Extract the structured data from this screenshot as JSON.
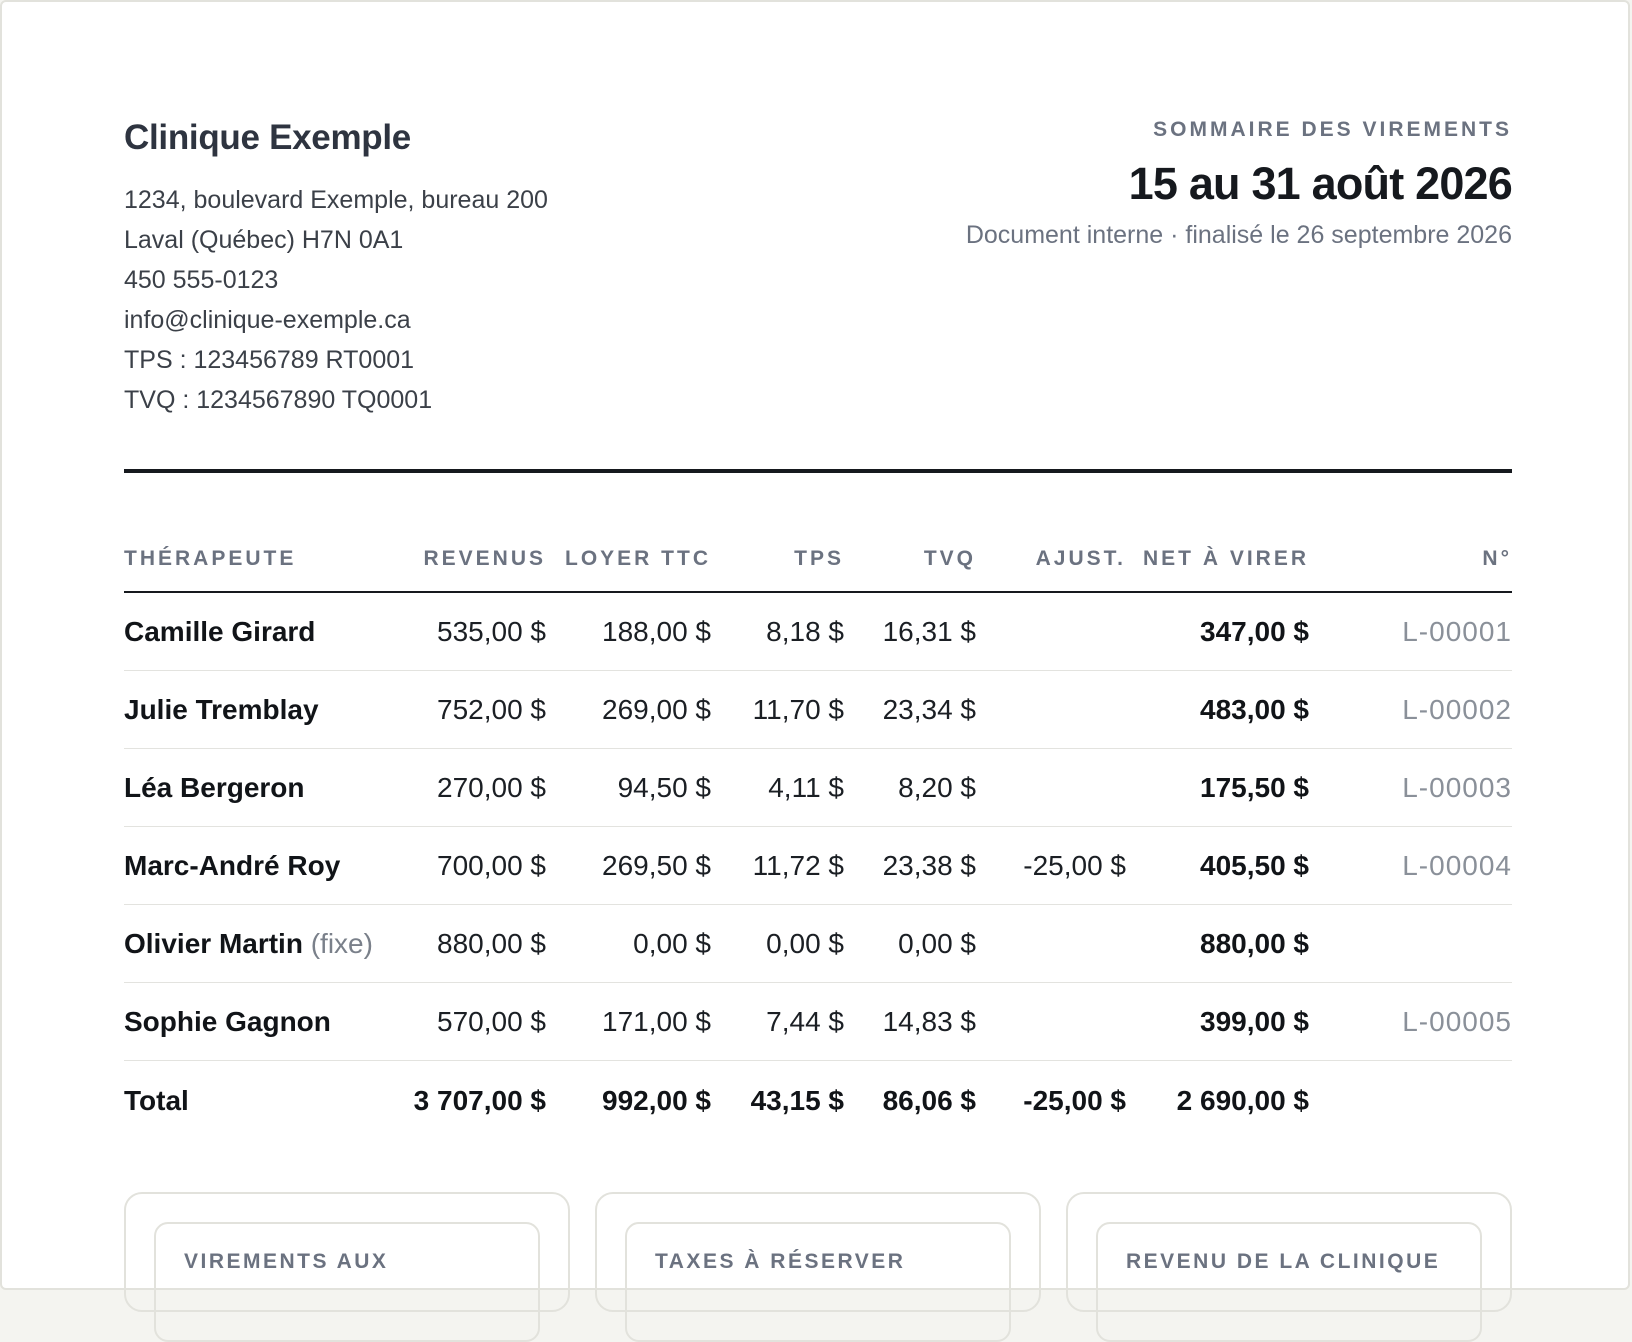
{
  "clinic": {
    "name": "Clinique Exemple",
    "address_lines": [
      "1234, boulevard Exemple, bureau 200",
      "Laval (Québec) H7N 0A1",
      "450 555-0123",
      "info@clinique-exemple.ca",
      "TPS : 123456789 RT0001",
      "TVQ : 1234567890 TQ0001"
    ]
  },
  "document": {
    "kicker": "SOMMAIRE DES VIREMENTS",
    "period": "15 au 31 août 2026",
    "note": "Document interne · finalisé le 26 septembre 2026"
  },
  "table": {
    "headers": [
      "THÉRAPEUTE",
      "REVENUS",
      "LOYER TTC",
      "TPS",
      "TVQ",
      "AJUST.",
      "NET À VIRER",
      "N°"
    ],
    "rows": [
      {
        "name": "Camille Girard",
        "tag": "",
        "revenus": "535,00 $",
        "loyer": "188,00 $",
        "tps": "8,18 $",
        "tvq": "16,31 $",
        "ajust": "",
        "net": "347,00 $",
        "ref": "L-00001"
      },
      {
        "name": "Julie Tremblay",
        "tag": "",
        "revenus": "752,00 $",
        "loyer": "269,00 $",
        "tps": "11,70 $",
        "tvq": "23,34 $",
        "ajust": "",
        "net": "483,00 $",
        "ref": "L-00002"
      },
      {
        "name": "Léa Bergeron",
        "tag": "",
        "revenus": "270,00 $",
        "loyer": "94,50 $",
        "tps": "4,11 $",
        "tvq": "8,20 $",
        "ajust": "",
        "net": "175,50 $",
        "ref": "L-00003"
      },
      {
        "name": "Marc-André Roy",
        "tag": "",
        "revenus": "700,00 $",
        "loyer": "269,50 $",
        "tps": "11,72 $",
        "tvq": "23,38 $",
        "ajust": "-25,00 $",
        "net": "405,50 $",
        "ref": "L-00004"
      },
      {
        "name": "Olivier Martin",
        "tag": "(fixe)",
        "revenus": "880,00 $",
        "loyer": "0,00 $",
        "tps": "0,00 $",
        "tvq": "0,00 $",
        "ajust": "",
        "net": "880,00 $",
        "ref": ""
      },
      {
        "name": "Sophie Gagnon",
        "tag": "",
        "revenus": "570,00 $",
        "loyer": "171,00 $",
        "tps": "7,44 $",
        "tvq": "14,83 $",
        "ajust": "",
        "net": "399,00 $",
        "ref": "L-00005"
      }
    ],
    "total": {
      "label": "Total",
      "revenus": "3 707,00 $",
      "loyer": "992,00 $",
      "tps": "43,15 $",
      "tvq": "86,06 $",
      "ajust": "-25,00 $",
      "net": "2 690,00 $",
      "ref": ""
    }
  },
  "cards": [
    {
      "label": "VIREMENTS AUX"
    },
    {
      "label": "TAXES À RÉSERVER"
    },
    {
      "label": "REVENU DE LA CLINIQUE"
    }
  ]
}
